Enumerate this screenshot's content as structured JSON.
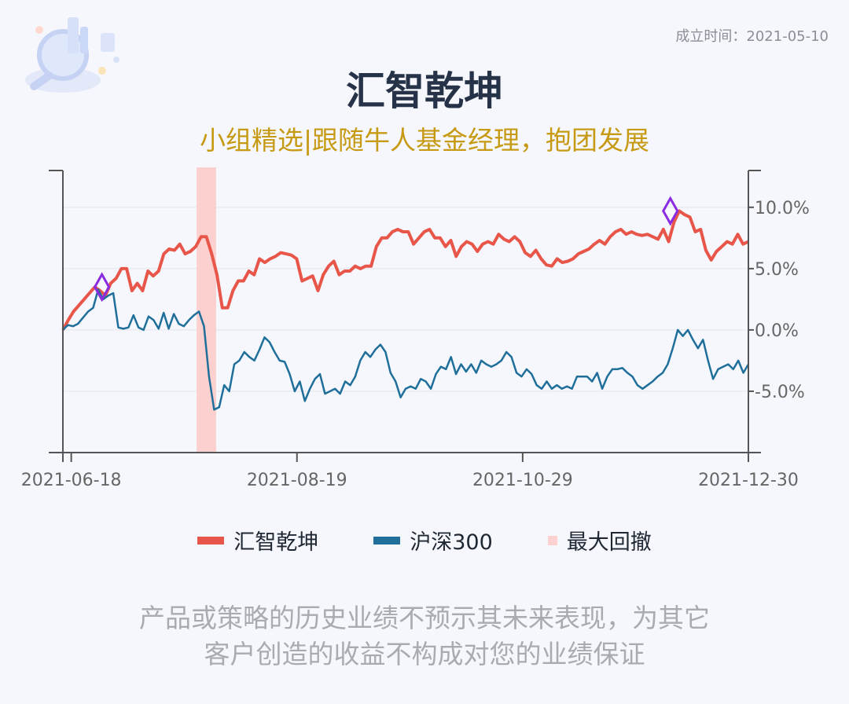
{
  "header": {
    "founded": "成立时间：2021-05-10",
    "title": "汇智乾坤",
    "subtitle": "小组精选|跟随牛人基金经理，抱团发展"
  },
  "legend": {
    "items": [
      {
        "label": "汇智乾坤",
        "color": "#e8564a"
      },
      {
        "label": "沪深300",
        "color": "#1f6f9a"
      },
      {
        "label": "最大回撤",
        "color": "#fbd0cf"
      }
    ]
  },
  "disclaimer": {
    "line1": "产品或策略的历史业绩不预示其未来表现，为其它",
    "line2": "客户创造的收益不构成对您的业绩保证"
  },
  "colors": {
    "fund": "#e8564a",
    "index": "#1f6f9a",
    "drawdown": "#fbd0cf",
    "marker": "#8a2be2",
    "axis": "#555555",
    "grid": "#e4e6ea"
  },
  "chart_data": {
    "type": "line",
    "x_ticks": [
      "2021-06-18",
      "2021-08-19",
      "2021-10-29",
      "2021-12-30"
    ],
    "y_ticks": [
      "10.0%",
      "5.0%",
      "0.0%",
      "-5.0%"
    ],
    "y_tick_values": [
      10,
      5,
      0,
      -5
    ],
    "ylim": [
      -10,
      13
    ],
    "x_range_points": [
      0,
      123
    ],
    "x_tick_points": [
      1.5,
      42,
      82.5,
      123
    ],
    "series": [
      {
        "name": "汇智乾坤",
        "values": [
          0,
          0.8,
          1.5,
          2,
          2.5,
          3,
          3.5,
          3.2,
          2.8,
          3.8,
          4.2,
          5,
          5,
          3.2,
          3.8,
          3.2,
          4.8,
          4.4,
          4.8,
          6.2,
          6.6,
          6.5,
          7,
          6.2,
          6.4,
          6.8,
          7.6,
          7.6,
          6.2,
          4.5,
          1.8,
          1.8,
          3.2,
          4,
          4,
          4.8,
          4.5,
          5.8,
          5.5,
          5.8,
          6,
          6.3,
          6.2,
          6.1,
          5.8,
          4,
          4.2,
          4.4,
          3.2,
          4.5,
          5.2,
          5.6,
          4.5,
          4.8,
          4.8,
          5.2,
          5,
          5.2,
          5.2,
          6.8,
          7.5,
          7.5,
          8,
          8.2,
          8,
          8,
          7,
          7.5,
          8,
          8.2,
          7.5,
          7.5,
          6.8,
          7.3,
          6,
          6.8,
          7.2,
          7,
          6.4,
          7,
          7.2,
          7,
          7.8,
          7.4,
          7.2,
          7.6,
          7.2,
          6.3,
          6,
          6.5,
          5.8,
          5.3,
          5.2,
          5.8,
          5.5,
          5.6,
          5.8,
          6.2,
          6.4,
          6.6,
          7,
          7.3,
          7,
          7.6,
          8,
          8.2,
          7.8,
          8,
          7.8,
          7.7,
          7.8,
          7.6,
          7.4,
          8.2,
          7.2,
          8.8,
          9.7,
          9.4,
          9.2,
          8,
          8.2,
          6.5,
          5.7,
          6.4,
          6.8,
          7.2,
          7,
          7.8,
          7,
          7.2
        ]
      },
      {
        "name": "沪深300",
        "values": [
          0,
          0.4,
          0.3,
          0.5,
          1,
          1.5,
          1.8,
          3.3,
          2.5,
          2.8,
          3,
          0.2,
          0.1,
          0.2,
          1.2,
          0.2,
          0,
          1.1,
          0.8,
          0.1,
          1.4,
          0.1,
          1.3,
          0.5,
          0.3,
          0.8,
          1.2,
          1.5,
          0.3,
          -3.8,
          -6.5,
          -6.3,
          -4.5,
          -5,
          -2.8,
          -2.5,
          -1.8,
          -2.2,
          -2.5,
          -1.6,
          -0.6,
          -1,
          -1.8,
          -2.5,
          -2.6,
          -3.6,
          -5,
          -4.2,
          -5.8,
          -4.8,
          -4,
          -3.6,
          -5.2,
          -5,
          -4.8,
          -5.2,
          -4.2,
          -4.5,
          -3.8,
          -2.5,
          -1.8,
          -2.2,
          -1.6,
          -1.2,
          -1.8,
          -3.5,
          -4.2,
          -5.5,
          -4.8,
          -4.6,
          -4.8,
          -4,
          -4.2,
          -4.8,
          -3.6,
          -3,
          -3.2,
          -2.2,
          -3.6,
          -2.8,
          -3.4,
          -2.8,
          -3.5,
          -2.5,
          -2.8,
          -3,
          -2.8,
          -2.5,
          -1.8,
          -2.2,
          -3.5,
          -3.8,
          -3.2,
          -3.6,
          -4.5,
          -4.8,
          -4.2,
          -4.8,
          -4.5,
          -4.8,
          -4.6,
          -4.8,
          -3.8,
          -3.8,
          -3.8,
          -4.2,
          -3.5,
          -4.8,
          -3.8,
          -3.2,
          -3.2,
          -3.1,
          -3.5,
          -3.8,
          -4.5,
          -4.8,
          -4.5,
          -4.2,
          -3.8,
          -3.5,
          -2.8,
          -1.5,
          0,
          -0.5,
          0,
          -0.8,
          -1.5,
          -0.8,
          -2.5,
          -4,
          -3.2,
          -3,
          -2.8,
          -3.2,
          -2.5,
          -3.5,
          -2.8
        ]
      }
    ],
    "drawdown_range_points": [
      24,
      27.5
    ],
    "peak_markers": [
      {
        "point": 7,
        "value": 3.5
      },
      {
        "point": 109,
        "value": 9.7
      }
    ]
  }
}
